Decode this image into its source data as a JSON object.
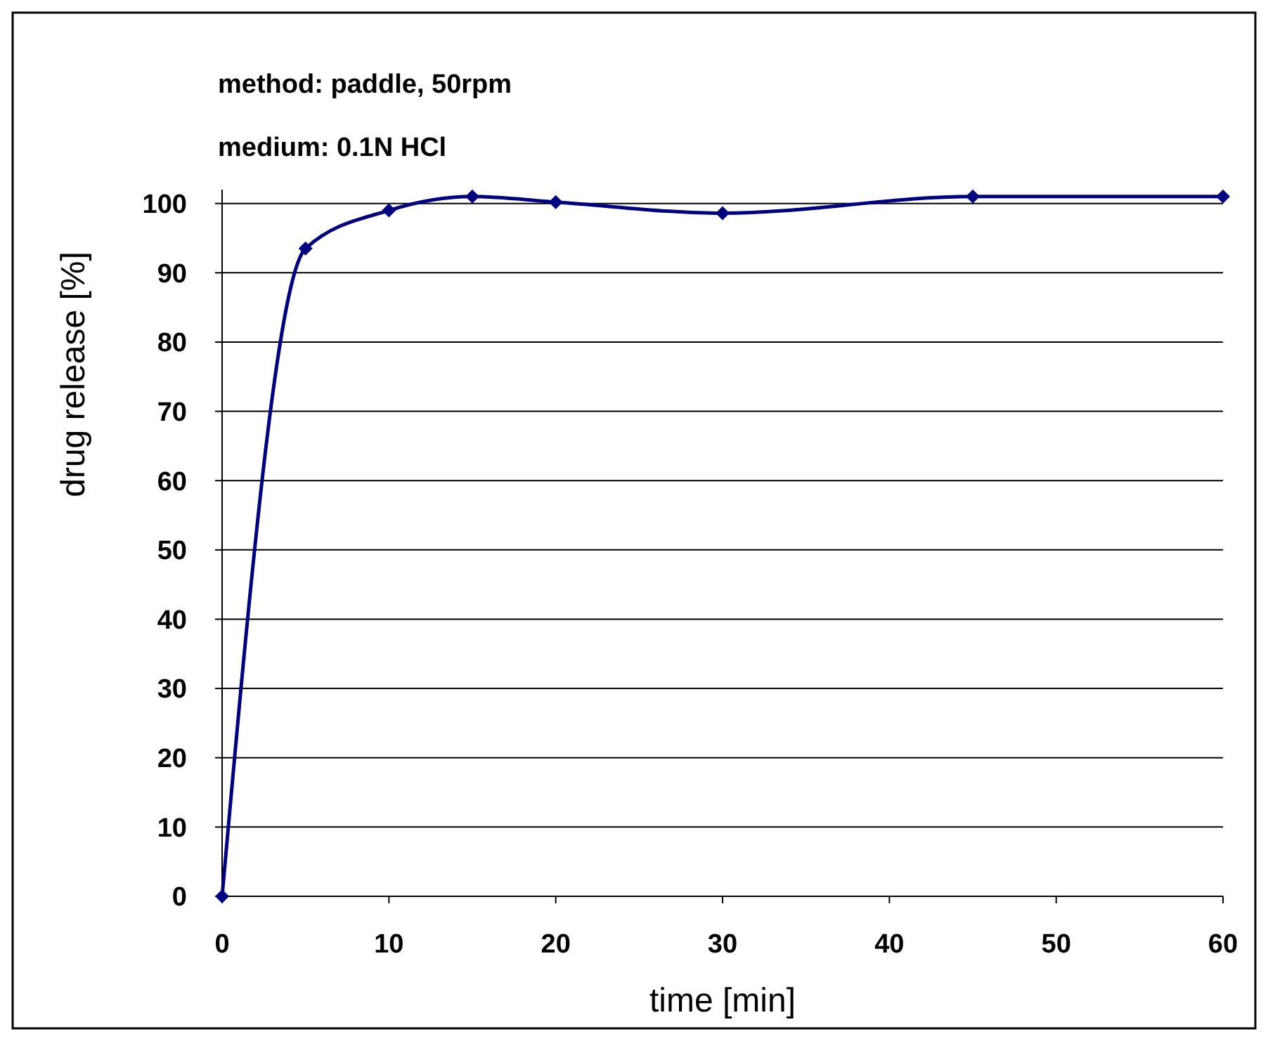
{
  "chart_data": {
    "type": "line",
    "title": "method: paddle, 50rpm",
    "subtitle": "medium: 0.1N HCl",
    "xlabel": "time [min]",
    "ylabel": "drug release [%]",
    "x": [
      0,
      5,
      10,
      15,
      20,
      30,
      45,
      60
    ],
    "series": [
      {
        "color": "#000080",
        "values": [
          0,
          93.5,
          99,
          101,
          100.2,
          98.6,
          101,
          101
        ]
      }
    ],
    "xlim": [
      0,
      60
    ],
    "xticks": [
      0,
      10,
      20,
      30,
      40,
      50,
      60
    ],
    "ylim": [
      0,
      102
    ],
    "yticks": [
      0,
      10,
      20,
      30,
      40,
      50,
      60,
      70,
      80,
      90,
      100
    ],
    "grid": "y",
    "marker": "diamond",
    "line_style": "solid"
  }
}
